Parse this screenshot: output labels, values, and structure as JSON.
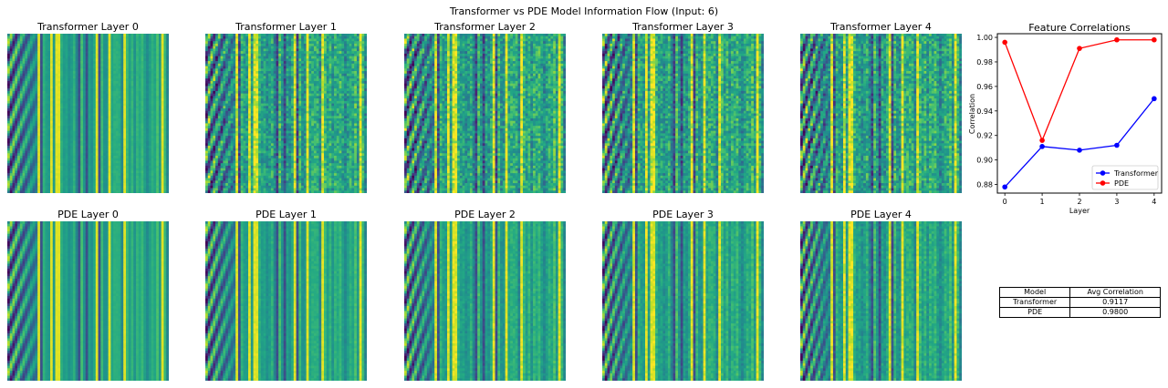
{
  "suptitle": "Transformer vs PDE Model Information Flow (Input: 6)",
  "heatmap_titles": {
    "transformer": [
      "Transformer Layer 0",
      "Transformer Layer 1",
      "Transformer Layer 2",
      "Transformer Layer 3",
      "Transformer Layer 4"
    ],
    "pde": [
      "PDE Layer 0",
      "PDE Layer 1",
      "PDE Layer 2",
      "PDE Layer 3",
      "PDE Layer 4"
    ]
  },
  "colormap": "viridis",
  "chart_data": [
    {
      "type": "line",
      "title": "Feature Correlations",
      "xlabel": "Layer",
      "ylabel": "Correlation",
      "x": [
        0,
        1,
        2,
        3,
        4
      ],
      "xticks": [
        "0",
        "1",
        "2",
        "3",
        "4"
      ],
      "ylim": [
        0.873,
        1.003
      ],
      "yticks": [
        "0.88",
        "0.90",
        "0.92",
        "0.94",
        "0.96",
        "0.98",
        "1.00"
      ],
      "ytick_values": [
        0.88,
        0.9,
        0.92,
        0.94,
        0.96,
        0.98,
        1.0
      ],
      "legend_position": "lower right",
      "grid": false,
      "series": [
        {
          "name": "Transformer",
          "color": "#0000ff",
          "marker": "circle",
          "values": [
            0.878,
            0.911,
            0.908,
            0.912,
            0.95
          ]
        },
        {
          "name": "PDE",
          "color": "#ff0000",
          "marker": "circle",
          "values": [
            0.996,
            0.916,
            0.991,
            0.998,
            0.998
          ]
        }
      ]
    },
    {
      "type": "table",
      "columns": [
        "Model",
        "Avg Correlation"
      ],
      "rows": [
        [
          "Transformer",
          "0.9117"
        ],
        [
          "PDE",
          "0.9800"
        ]
      ]
    }
  ]
}
